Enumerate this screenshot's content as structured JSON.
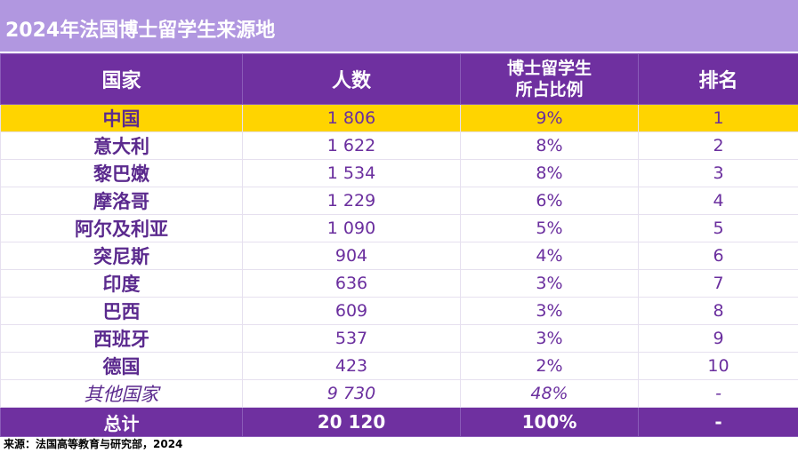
{
  "title": "2024年法国博士留学生来源地",
  "headers": {
    "country": "国家",
    "count": "人数",
    "share_line1": "博士留学生",
    "share_line2": "所占比例",
    "rank": "排名"
  },
  "rows": [
    {
      "country": "中国",
      "count": "1 806",
      "share": "9%",
      "rank": "1"
    },
    {
      "country": "意大利",
      "count": "1 622",
      "share": "8%",
      "rank": "2"
    },
    {
      "country": "黎巴嫩",
      "count": "1 534",
      "share": "8%",
      "rank": "3"
    },
    {
      "country": "摩洛哥",
      "count": "1 229",
      "share": "6%",
      "rank": "4"
    },
    {
      "country": "阿尔及利亚",
      "count": "1 090",
      "share": "5%",
      "rank": "5"
    },
    {
      "country": "突尼斯",
      "count": "904",
      "share": "4%",
      "rank": "6"
    },
    {
      "country": "印度",
      "count": "636",
      "share": "3%",
      "rank": "7"
    },
    {
      "country": "巴西",
      "count": "609",
      "share": "3%",
      "rank": "8"
    },
    {
      "country": "西班牙",
      "count": "537",
      "share": "3%",
      "rank": "9"
    },
    {
      "country": "德国",
      "count": "423",
      "share": "2%",
      "rank": "10"
    },
    {
      "country": "其他国家",
      "count": "9 730",
      "share": "48%",
      "rank": "-"
    }
  ],
  "total": {
    "label": "总计",
    "count": "20 120",
    "share": "100%",
    "rank": "-"
  },
  "source": "来源：法国高等教育与研究部，2024",
  "colors": {
    "header_bg": "#6f30a0",
    "title_bg": "#b197e0",
    "highlight_bg": "#ffd400",
    "text": "#6a2e9e"
  }
}
